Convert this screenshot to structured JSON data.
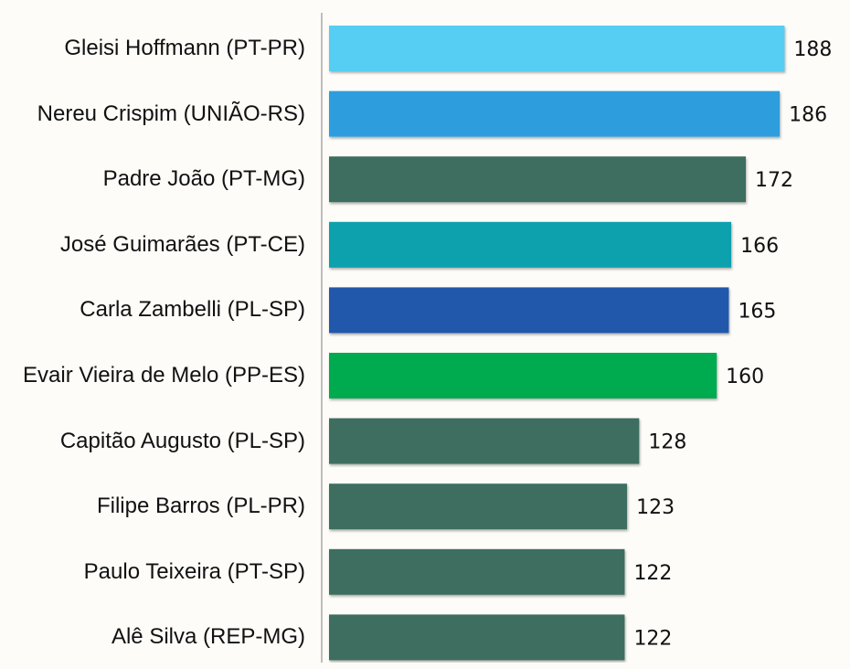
{
  "chart_data": {
    "type": "barh",
    "categories": [
      "Gleisi Hoffmann (PT-PR)",
      "Nereu Crispim (UNIÃO-RS)",
      "Padre João (PT-MG)",
      "José Guimarães (PT-CE)",
      "Carla Zambelli (PL-SP)",
      "Evair Vieira de Melo (PP-ES)",
      "Capitão Augusto (PL-SP)",
      "Filipe Barros (PL-PR)",
      "Paulo Teixeira (PT-SP)",
      "Alê Silva (REP-MG)"
    ],
    "values": [
      188,
      186,
      172,
      166,
      165,
      160,
      128,
      123,
      122,
      122
    ],
    "colors": [
      "#56cdf2",
      "#2e9ddd",
      "#3d6e5f",
      "#0aa0ad",
      "#2358ab",
      "#06aa50",
      "#3d6e5f",
      "#3d6e5f",
      "#3d6e5f",
      "#3d6e5f"
    ],
    "xlim": [
      0,
      215
    ]
  }
}
